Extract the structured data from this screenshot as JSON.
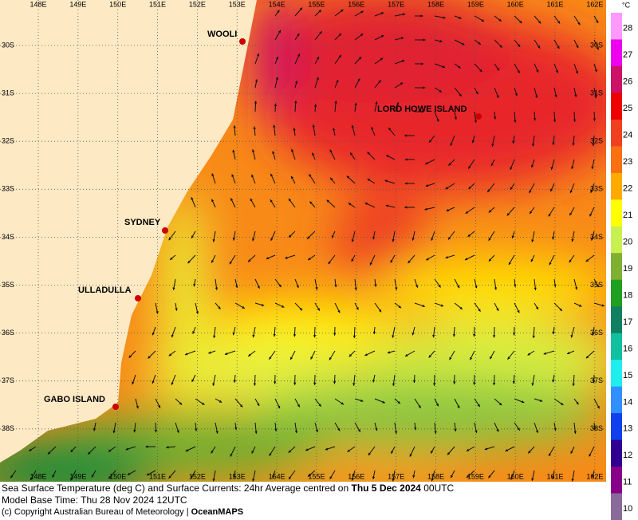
{
  "map": {
    "lon_labels": [
      "148E",
      "149E",
      "150E",
      "151E",
      "152E",
      "153E",
      "154E",
      "155E",
      "156E",
      "157E",
      "158E",
      "159E",
      "160E",
      "161E",
      "162E"
    ],
    "lat_labels": [
      "30S",
      "31S",
      "32S",
      "33S",
      "34S",
      "35S",
      "36S",
      "37S",
      "38S"
    ],
    "places": [
      {
        "label": "WOOLI"
      },
      {
        "label": "LORD HOWE ISLAND"
      },
      {
        "label": "SYDNEY"
      },
      {
        "label": "ULLADULLA"
      },
      {
        "label": "GABO ISLAND"
      }
    ]
  },
  "colorbar": {
    "unit": "°C",
    "levels": [
      {
        "label": "28",
        "color": "#ff99ff"
      },
      {
        "label": "27",
        "color": "#ee00ee"
      },
      {
        "label": "26",
        "color": "#cc1166"
      },
      {
        "label": "25",
        "color": "#ee0000"
      },
      {
        "label": "24",
        "color": "#f04020"
      },
      {
        "label": "23",
        "color": "#f87010"
      },
      {
        "label": "22",
        "color": "#ffaa00"
      },
      {
        "label": "21",
        "color": "#ffff00"
      },
      {
        "label": "20",
        "color": "#c8f050"
      },
      {
        "label": "19",
        "color": "#80b030"
      },
      {
        "label": "18",
        "color": "#20a020"
      },
      {
        "label": "17",
        "color": "#108060"
      },
      {
        "label": "16",
        "color": "#10c0a0"
      },
      {
        "label": "15",
        "color": "#20eeee"
      },
      {
        "label": "14",
        "color": "#3090ff"
      },
      {
        "label": "13",
        "color": "#1040ee"
      },
      {
        "label": "12",
        "color": "#300090"
      },
      {
        "label": "11",
        "color": "#880088"
      },
      {
        "label": "10",
        "color": "#8a6a9a"
      }
    ]
  },
  "caption": {
    "line1": "Sea Surface Temperature (deg C) and Surface Currents: 24hr Average centred on ",
    "line1_date": "Thu 5 Dec 2024",
    "line1_end": " 00UTC",
    "line2": "Model Base Time: Thu 28 Nov 2024 12UTC",
    "line3": "(c) Copyright Australian Bureau of Meteorology | ",
    "line3_brand": "OceanMAPS"
  }
}
